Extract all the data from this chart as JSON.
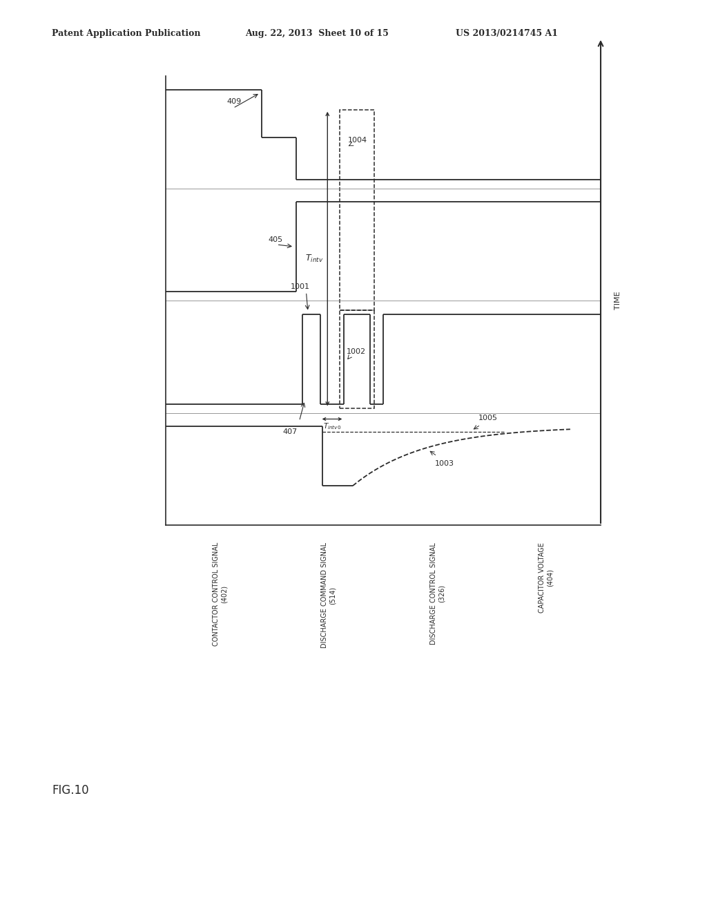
{
  "title_left": "Patent Application Publication",
  "title_mid": "Aug. 22, 2013  Sheet 10 of 15",
  "title_right": "US 2013/0214745 A1",
  "fig_label": "FIG.10",
  "time_label": "TIME",
  "background_color": "#ffffff",
  "line_color": "#2a2a2a",
  "font_size_header": 9,
  "font_size_annotation": 8,
  "signal_labels": [
    "CONTACTOR CONTROL SIGNAL\n(402)",
    "DISCHARGE COMMAND SIGNAL\n(514)",
    "DISCHARGE CONTROL SIGNAL\n(326)",
    "CAPACITOR VOLTAGE\n(404)"
  ]
}
